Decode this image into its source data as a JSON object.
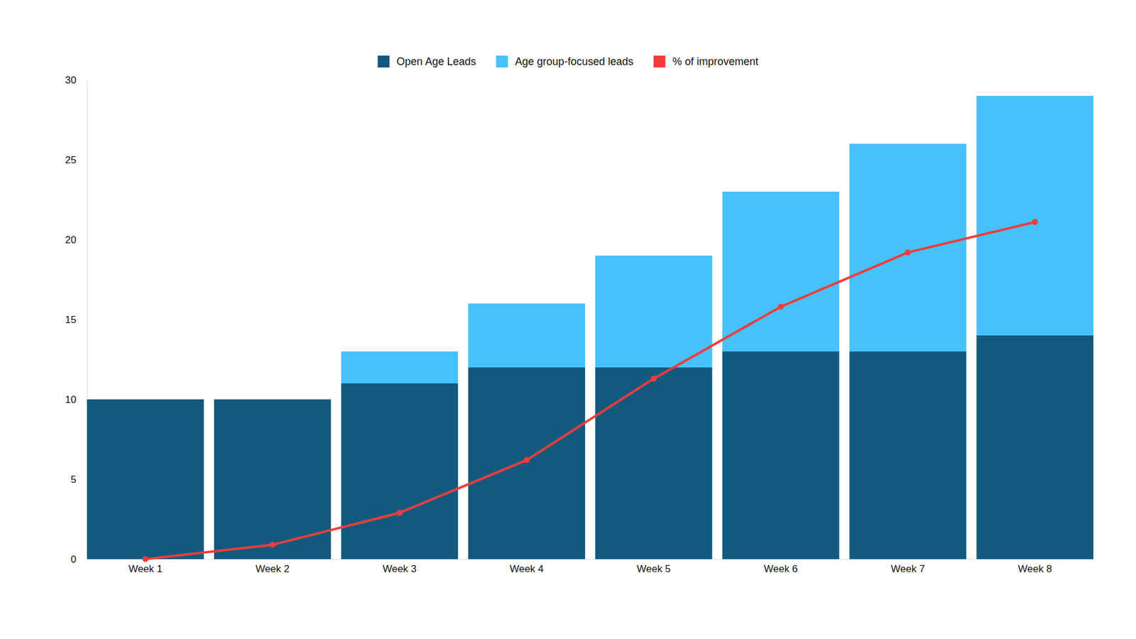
{
  "chart_data": {
    "type": "bar",
    "stacked": true,
    "legend": "top",
    "categories": [
      "Week 1",
      "Week 2",
      "Week 3",
      "Week 4",
      "Week 5",
      "Week 6",
      "Week 7",
      "Week 8"
    ],
    "ylim": [
      0,
      30
    ],
    "yticks": [
      0,
      5,
      10,
      15,
      20,
      25,
      30
    ],
    "grid": false,
    "series": [
      {
        "name": "Open Age Leads",
        "type": "bar",
        "color": "#115a7e",
        "values": [
          10,
          10,
          11,
          12,
          12,
          13,
          13,
          14
        ]
      },
      {
        "name": "Age group-focused leads",
        "type": "bar",
        "color": "#47c1fa",
        "values": [
          0,
          0,
          2,
          4,
          7,
          10,
          13,
          15
        ]
      },
      {
        "name": "% of improvement",
        "type": "line",
        "color": "#f23c3c",
        "marker": "circle",
        "values": [
          0,
          0.9,
          2.9,
          6.2,
          11.3,
          15.8,
          19.2,
          21.1
        ]
      }
    ]
  }
}
